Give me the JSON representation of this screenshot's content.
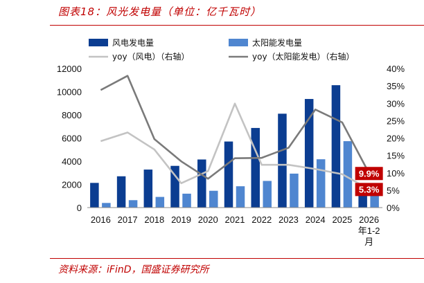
{
  "figure": {
    "title": "图表18：风光发电量（单位：亿千瓦时）",
    "source": "资料来源：iFinD，国盛证券研究所"
  },
  "chart_data": {
    "type": "bar",
    "categories": [
      "2016",
      "2017",
      "2018",
      "2019",
      "2020",
      "2021",
      "2022",
      "2023",
      "2024",
      "2025",
      "2026年1-2月"
    ],
    "category_lines": [
      [
        "2016"
      ],
      [
        "2017"
      ],
      [
        "2018"
      ],
      [
        "2019"
      ],
      [
        "2020"
      ],
      [
        "2021"
      ],
      [
        "2022"
      ],
      [
        "2023"
      ],
      [
        "2024"
      ],
      [
        "2025"
      ],
      [
        "2026",
        "年1-2",
        "月"
      ]
    ],
    "series": [
      {
        "name": "风电发电量",
        "type": "bar",
        "axis": "left",
        "color": "#0b3d91",
        "values": [
          2130,
          2700,
          3280,
          3600,
          4150,
          5700,
          6870,
          8100,
          9370,
          10560,
          1880
        ]
      },
      {
        "name": "太阳能发电量",
        "type": "bar",
        "axis": "left",
        "color": "#4f86d0",
        "values": [
          400,
          640,
          920,
          1200,
          1450,
          1840,
          2300,
          2930,
          4170,
          5730,
          1200
        ]
      },
      {
        "name": "yoy（风电）（右轴）",
        "type": "line",
        "axis": "right",
        "color": "#c3c3c3",
        "values": [
          19.1,
          21.6,
          16.7,
          7.0,
          10.5,
          29.9,
          12.3,
          12.3,
          11.1,
          9.6,
          5.3
        ]
      },
      {
        "name": "yoy（太阳能发电）（右轴）",
        "type": "line",
        "axis": "right",
        "color": "#7a7a7a",
        "values": [
          33.8,
          37.9,
          19.7,
          13.3,
          8.3,
          14.2,
          14.3,
          17.2,
          28.2,
          24.5,
          9.9
        ]
      }
    ],
    "y_left": {
      "min": 0,
      "max": 12000,
      "ticks": [
        0,
        2000,
        4000,
        6000,
        8000,
        10000,
        12000
      ]
    },
    "y_right": {
      "min": 0,
      "max": 40,
      "ticks": [
        "0%",
        "5%",
        "10%",
        "15%",
        "20%",
        "25%",
        "30%",
        "35%",
        "40%"
      ]
    },
    "callouts": [
      {
        "text": "9.9%",
        "series": "yoy（太阳能发电）（右轴）",
        "value": 9.9,
        "color": "#c00000"
      },
      {
        "text": "5.3%",
        "series": "yoy（风电）（右轴）",
        "value": 5.3,
        "color": "#c00000"
      }
    ],
    "legend_position": "top",
    "grid": false
  }
}
